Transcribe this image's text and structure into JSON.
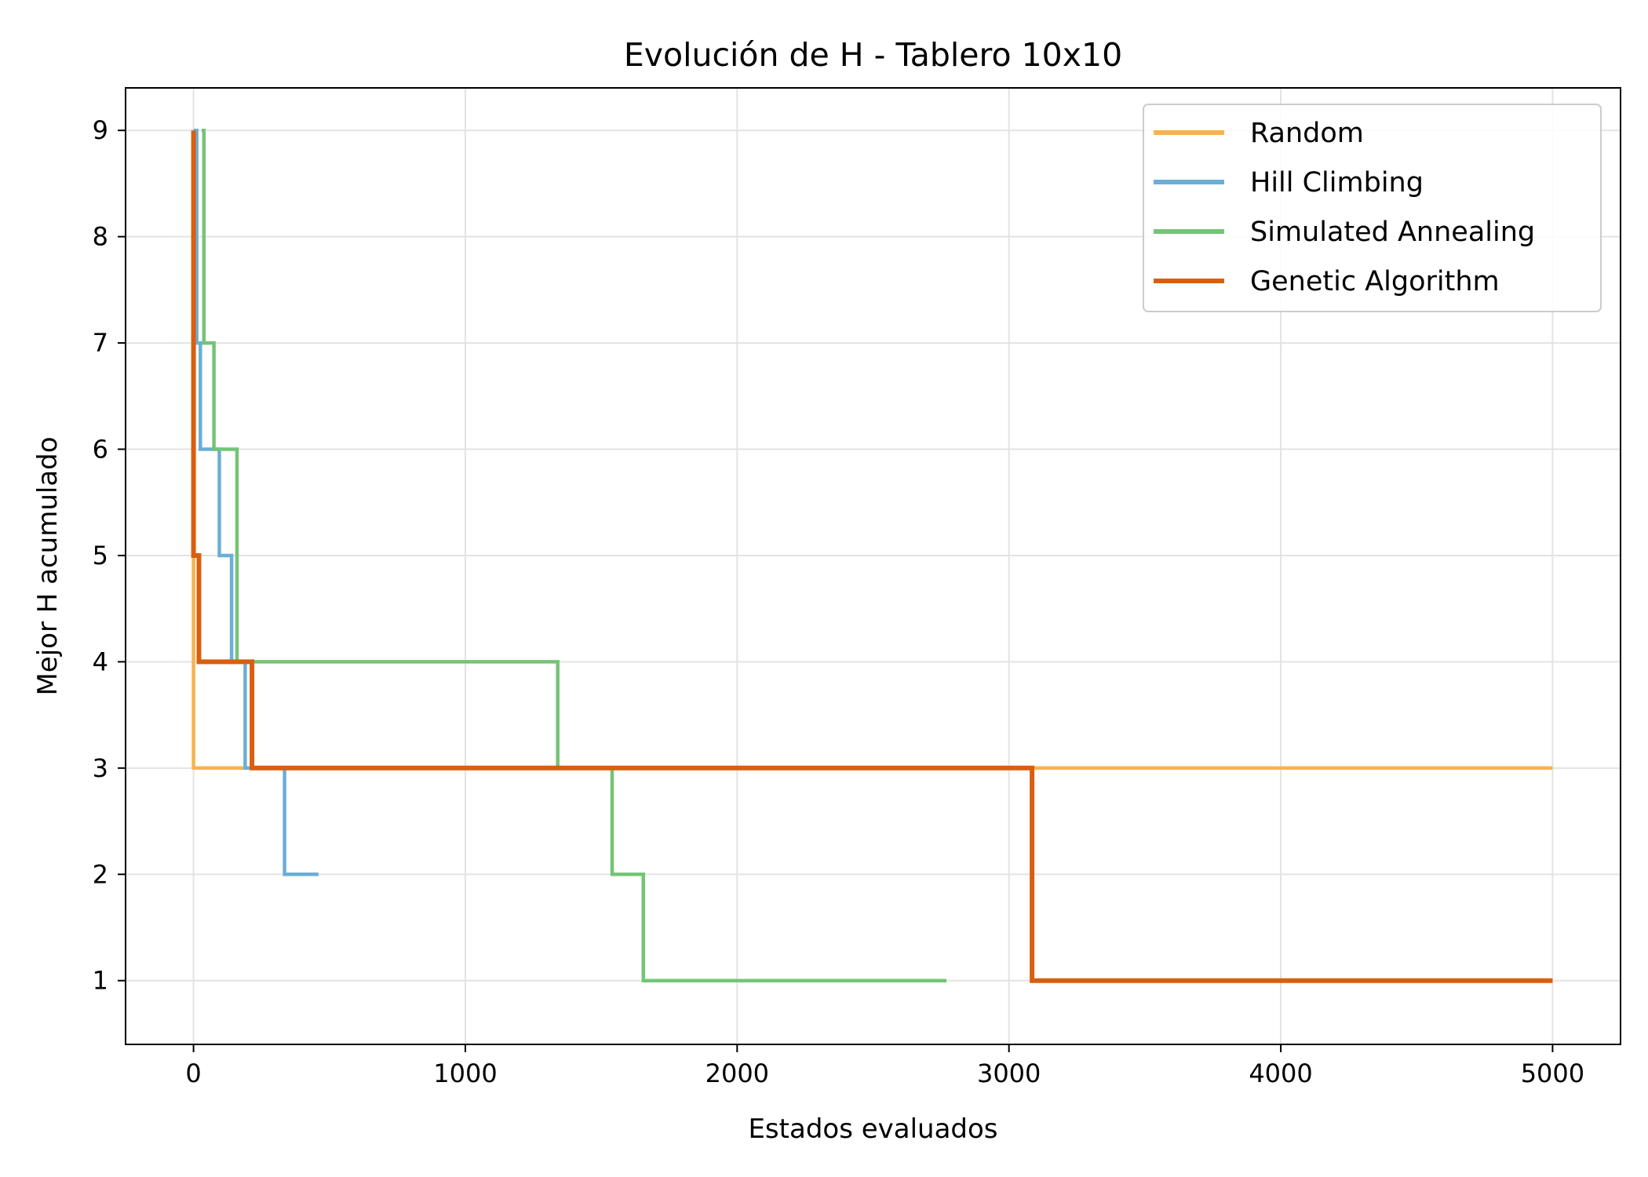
{
  "chart_data": {
    "type": "line",
    "step": true,
    "title": "Evolución de H - Tablero 10x10",
    "xlabel": "Estados evaluados",
    "ylabel": "Mejor H acumulado",
    "xlim": [
      -250,
      5250
    ],
    "ylim": [
      0.4,
      9.4
    ],
    "xticks": [
      0,
      1000,
      2000,
      3000,
      4000,
      5000
    ],
    "yticks": [
      1,
      2,
      3,
      4,
      5,
      6,
      7,
      8,
      9
    ],
    "grid": true,
    "legend_position": "upper right",
    "series": [
      {
        "name": "Random",
        "color": "#f8b34d",
        "points": [
          [
            0,
            9
          ],
          [
            0,
            3
          ],
          [
            5000,
            3
          ]
        ]
      },
      {
        "name": "Hill Climbing",
        "color": "#6baed6",
        "points": [
          [
            0,
            9
          ],
          [
            12,
            9
          ],
          [
            12,
            7
          ],
          [
            25,
            7
          ],
          [
            25,
            6
          ],
          [
            95,
            6
          ],
          [
            95,
            5
          ],
          [
            140,
            5
          ],
          [
            140,
            4
          ],
          [
            190,
            4
          ],
          [
            190,
            3
          ],
          [
            335,
            3
          ],
          [
            335,
            2
          ],
          [
            460,
            2
          ]
        ]
      },
      {
        "name": "Simulated Annealing",
        "color": "#74c476",
        "points": [
          [
            30,
            9
          ],
          [
            38,
            9
          ],
          [
            38,
            7
          ],
          [
            75,
            7
          ],
          [
            75,
            6
          ],
          [
            160,
            6
          ],
          [
            160,
            4
          ],
          [
            1340,
            4
          ],
          [
            1340,
            3
          ],
          [
            1540,
            3
          ],
          [
            1540,
            2
          ],
          [
            1655,
            2
          ],
          [
            1655,
            1
          ],
          [
            2770,
            1
          ]
        ]
      },
      {
        "name": "Genetic Algorithm",
        "color": "#d95f0e",
        "points": [
          [
            0,
            9
          ],
          [
            0,
            5
          ],
          [
            20,
            5
          ],
          [
            20,
            4
          ],
          [
            215,
            4
          ],
          [
            215,
            3
          ],
          [
            3085,
            3
          ],
          [
            3085,
            1
          ],
          [
            5000,
            1
          ]
        ]
      }
    ]
  }
}
